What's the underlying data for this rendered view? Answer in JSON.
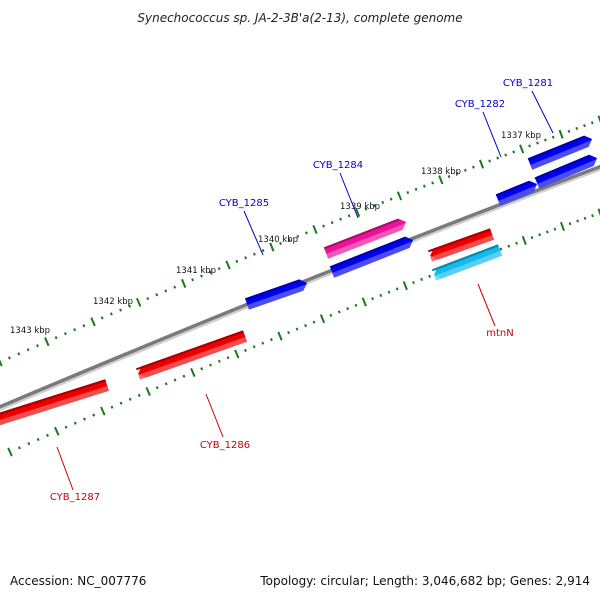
{
  "title": "Synechococcus sp. JA-2-3B'a(2-13), complete genome",
  "footer": {
    "accession": "Accession: NC_007776",
    "summary": "Topology: circular; Length: 3,046,682 bp; Genes: 2,914"
  },
  "scale_labels": [
    "1337 kbp",
    "1338 kbp",
    "1339 kbp",
    "1340 kbp",
    "1341 kbp",
    "1342 kbp",
    "1343 kbp"
  ],
  "genes": [
    {
      "id": "CYB_1281",
      "label": "CYB_1281",
      "strand": "forward",
      "color": "#0000ee",
      "label_color": "#0000cc"
    },
    {
      "id": "CYB_1281b",
      "label": "",
      "strand": "forward",
      "color": "#0000ee",
      "label_color": "#0000cc"
    },
    {
      "id": "CYB_1282",
      "label": "CYB_1282",
      "strand": "forward",
      "color": "#0000ee",
      "label_color": "#0000cc"
    },
    {
      "id": "CYB_1284",
      "label": "CYB_1284",
      "strand": "forward",
      "color": "#ee1199",
      "label_color": "#0000cc"
    },
    {
      "id": "CYB_1284b",
      "label": "",
      "strand": "forward",
      "color": "#0000ee",
      "label_color": "#0000cc"
    },
    {
      "id": "CYB_1285",
      "label": "CYB_1285",
      "strand": "forward",
      "color": "#0000ee",
      "label_color": "#0000cc"
    },
    {
      "id": "CYB_1283",
      "label": "",
      "strand": "reverse",
      "color": "#ee0000",
      "label_color": "#cc0000"
    },
    {
      "id": "mtnN",
      "label": "mtnN",
      "strand": "reverse",
      "color": "#11bbee",
      "label_color": "#cc0000"
    },
    {
      "id": "CYB_1286",
      "label": "CYB_1286",
      "strand": "reverse",
      "color": "#ee0000",
      "label_color": "#cc0000"
    },
    {
      "id": "CYB_1287",
      "label": "CYB_1287",
      "strand": "reverse",
      "color": "#ee0000",
      "label_color": "#cc0000"
    }
  ],
  "colors": {
    "backbone": "#7a7a7a",
    "tick": "#1a7a1a",
    "forward_gene": "#0000ee",
    "reverse_gene": "#ee0000",
    "rna_gene": "#ee1199",
    "highlight_gene": "#11bbee"
  }
}
